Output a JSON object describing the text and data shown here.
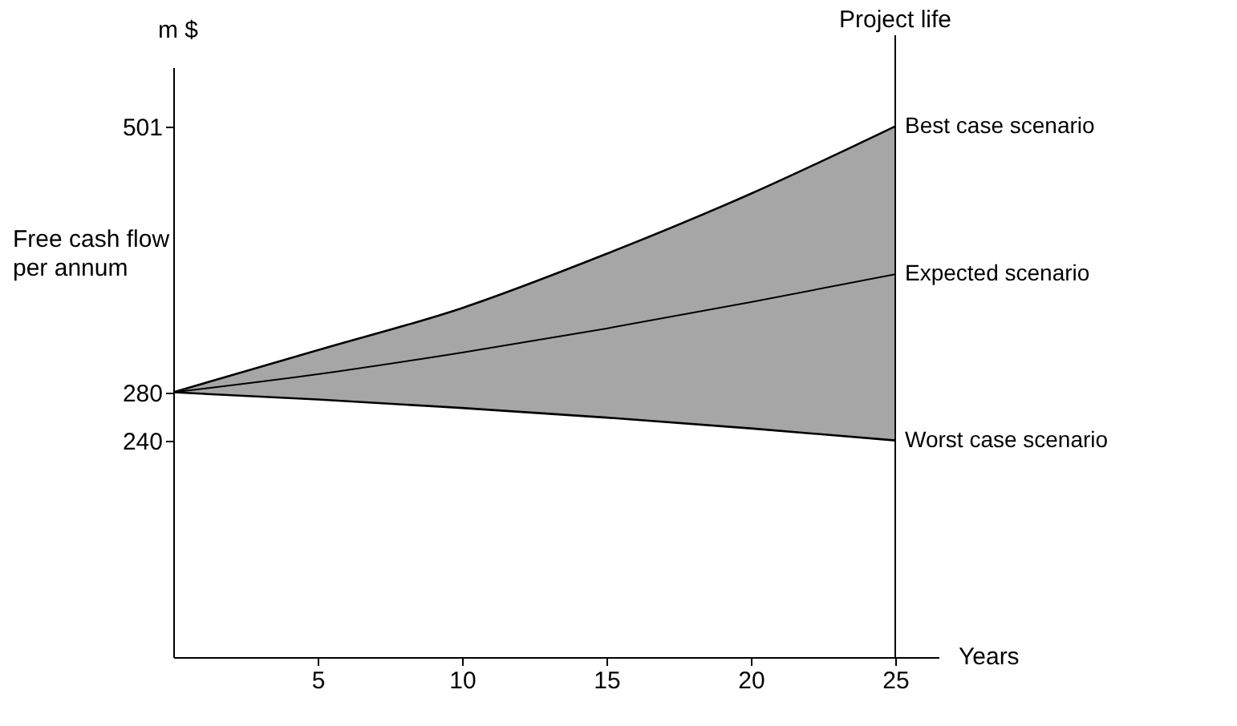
{
  "chart_data": {
    "type": "line",
    "xlabel": "Years",
    "ylabel": "m $",
    "x": [
      0,
      5,
      10,
      15,
      20,
      25
    ],
    "series": [
      {
        "name": "Expected scenario",
        "color": "#000000",
        "values": [
          280,
          295,
          313,
          333,
          355,
          378
        ],
        "lower": [
          280,
          274,
          267,
          259,
          250,
          240
        ],
        "upper": [
          280,
          315,
          350,
          395,
          445,
          501
        ]
      }
    ],
    "xlim": [
      0,
      26.5
    ],
    "xticks": [
      5,
      10,
      15,
      20,
      25
    ],
    "ylim": [
      60,
      550
    ],
    "yticks": [
      240,
      280,
      501
    ],
    "ref_lines": [
      {
        "axis": "x",
        "value": 25,
        "label": "Project life",
        "color": "#000000"
      }
    ],
    "annotations": [
      "Free cash flow per annum",
      {
        "text": "Best case scenario",
        "x": 25,
        "y": 501
      },
      {
        "text": "Worst case scenario",
        "x": 25,
        "y": 240
      }
    ],
    "grid": false,
    "marker": "none",
    "line_style": "solid"
  }
}
